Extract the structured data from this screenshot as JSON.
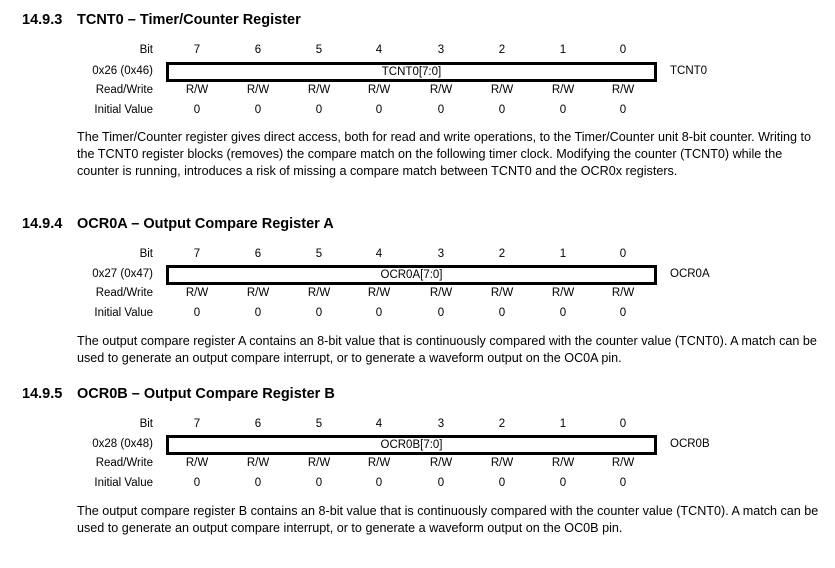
{
  "sections": [
    {
      "number": "14.9.3",
      "title": "TCNT0 – Timer/Counter Register",
      "address": "0x26 (0x46)",
      "field": "TCNT0[7:0]",
      "register": "TCNT0",
      "paragraph": "The Timer/Counter register gives direct access, both for read and write operations, to the Timer/Counter unit 8-bit counter. Writing to the TCNT0 register blocks (removes) the compare match on the following timer clock. Modifying the counter (TCNT0) while the counter is running, introduces a risk of missing a compare match between TCNT0 and the OCR0x registers."
    },
    {
      "number": "14.9.4",
      "title": "OCR0A – Output Compare Register A",
      "address": "0x27 (0x47)",
      "field": "OCR0A[7:0]",
      "register": "OCR0A",
      "paragraph": "The output compare register A contains an 8-bit value that is continuously compared with the counter value (TCNT0). A match can be used to generate an output compare interrupt, or to generate a waveform output on the OC0A pin."
    },
    {
      "number": "14.9.5",
      "title": "OCR0B – Output Compare Register B",
      "address": "0x28 (0x48)",
      "field": "OCR0B[7:0]",
      "register": "OCR0B",
      "paragraph": "The output compare register B contains an 8-bit value that is continuously compared with the counter value (TCNT0). A match can be used to generate an output compare interrupt, or to generate a waveform output on the OC0B pin."
    }
  ],
  "labels": {
    "bit": "Bit",
    "read_write": "Read/Write",
    "initial_value": "Initial Value"
  },
  "bits": [
    "7",
    "6",
    "5",
    "4",
    "3",
    "2",
    "1",
    "0"
  ],
  "access": [
    "R/W",
    "R/W",
    "R/W",
    "R/W",
    "R/W",
    "R/W",
    "R/W",
    "R/W"
  ],
  "initial": [
    "0",
    "0",
    "0",
    "0",
    "0",
    "0",
    "0",
    "0"
  ]
}
